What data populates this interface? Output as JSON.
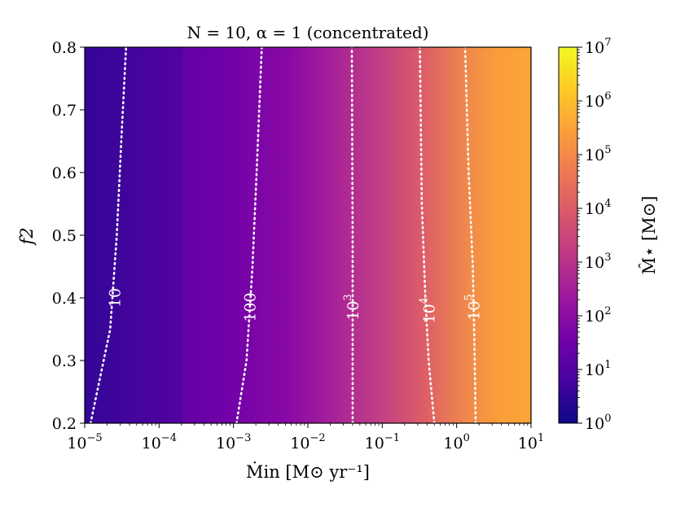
{
  "chart_data": {
    "type": "heatmap",
    "title": "N = 10, α = 1 (concentrated)",
    "xlabel": "Ṁin [M⊙ yr⁻¹]",
    "ylabel": "f2",
    "colorbar_label": "M̂⋆ [M⊙]",
    "x_scale": "log",
    "xlim": [
      1e-05,
      10
    ],
    "ylim": [
      0.2,
      0.8
    ],
    "x_ticks": [
      {
        "base": "10",
        "exp": "−5",
        "value": 1e-05
      },
      {
        "base": "10",
        "exp": "−4",
        "value": 0.0001
      },
      {
        "base": "10",
        "exp": "−3",
        "value": 0.001
      },
      {
        "base": "10",
        "exp": "−2",
        "value": 0.01
      },
      {
        "base": "10",
        "exp": "−1",
        "value": 0.1
      },
      {
        "base": "10",
        "exp": "0",
        "value": 1
      },
      {
        "base": "10",
        "exp": "1",
        "value": 10
      }
    ],
    "y_ticks": [
      "0.2",
      "0.3",
      "0.4",
      "0.5",
      "0.6",
      "0.7",
      "0.8"
    ],
    "colorbar_scale": "log",
    "colorbar_range": [
      1,
      10000000.0
    ],
    "colorbar_ticks": [
      {
        "base": "10",
        "exp": "0"
      },
      {
        "base": "10",
        "exp": "1"
      },
      {
        "base": "10",
        "exp": "2"
      },
      {
        "base": "10",
        "exp": "3"
      },
      {
        "base": "10",
        "exp": "4"
      },
      {
        "base": "10",
        "exp": "5"
      },
      {
        "base": "10",
        "exp": "6"
      },
      {
        "base": "10",
        "exp": "7"
      }
    ],
    "colormap": [
      "#0d0887",
      "#46039f",
      "#7201a8",
      "#9c179e",
      "#bd3786",
      "#d8576b",
      "#ed7953",
      "#fb9f3a",
      "#fdca26",
      "#f0f921"
    ],
    "contours": [
      {
        "level": 10,
        "label": "10",
        "label_base": "10",
        "label_exp": "",
        "label_at": {
          "x": 2.5e-05,
          "y": 0.4
        },
        "points": [
          [
            1.2e-05,
            0.2
          ],
          [
            2.2e-05,
            0.35
          ],
          [
            2.7e-05,
            0.5
          ],
          [
            3.1e-05,
            0.65
          ],
          [
            3.6e-05,
            0.8
          ]
        ]
      },
      {
        "level": 100,
        "label": "100",
        "label_base": "100",
        "label_exp": "",
        "label_at": {
          "x": 0.00165,
          "y": 0.385
        },
        "points": [
          [
            0.0011,
            0.2
          ],
          [
            0.0015,
            0.3
          ],
          [
            0.0018,
            0.45
          ],
          [
            0.00205,
            0.6
          ],
          [
            0.0024,
            0.8
          ]
        ]
      },
      {
        "level": 1000,
        "label": "10^3",
        "label_base": "10",
        "label_exp": "3",
        "label_at": {
          "x": 0.04,
          "y": 0.385
        },
        "points": [
          [
            0.04,
            0.2
          ],
          [
            0.04,
            0.5
          ],
          [
            0.039,
            0.8
          ]
        ]
      },
      {
        "level": 10000,
        "label": "10^4",
        "label_base": "10",
        "label_exp": "4",
        "label_at": {
          "x": 0.42,
          "y": 0.38
        },
        "points": [
          [
            0.5,
            0.2
          ],
          [
            0.42,
            0.3
          ],
          [
            0.38,
            0.4
          ],
          [
            0.34,
            0.55
          ],
          [
            0.32,
            0.8
          ]
        ]
      },
      {
        "level": 100000,
        "label": "10^5",
        "label_base": "10",
        "label_exp": "5",
        "label_at": {
          "x": 1.7,
          "y": 0.385
        },
        "points": [
          [
            1.8,
            0.2
          ],
          [
            1.75,
            0.3
          ],
          [
            1.65,
            0.45
          ],
          [
            1.45,
            0.6
          ],
          [
            1.3,
            0.8
          ]
        ]
      }
    ]
  }
}
